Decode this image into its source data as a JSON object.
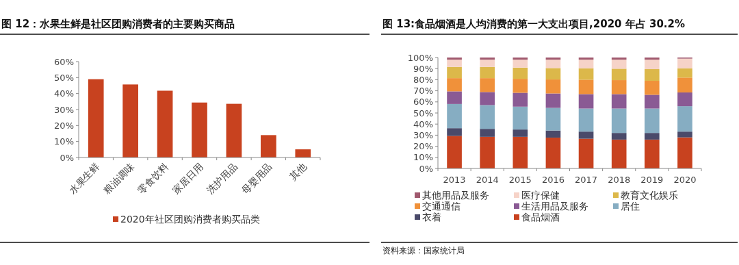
{
  "chart_data": [
    {
      "type": "bar",
      "title": "图 12：水果生鲜是社区团购消费者的主要购买商品",
      "categories": [
        "水果生鲜",
        "粮油调味",
        "零食饮料",
        "家居日用",
        "洗护用品",
        "母婴用品",
        "其他"
      ],
      "series": [
        {
          "name": "2020年社区团购消费者购买品类",
          "color": "#c8421f",
          "values": [
            49.0,
            45.7,
            41.8,
            34.4,
            33.6,
            14.0,
            5.1
          ]
        }
      ],
      "ylim": [
        0,
        60
      ],
      "yticks": [
        {
          "value": 0,
          "label": "0%"
        },
        {
          "value": 10,
          "label": "10%"
        },
        {
          "value": 20,
          "label": "20%"
        },
        {
          "value": 30,
          "label": "30%"
        },
        {
          "value": 40,
          "label": "40%"
        },
        {
          "value": 50,
          "label": "50%"
        },
        {
          "value": 60,
          "label": "60%"
        }
      ],
      "legend": "bottom"
    },
    {
      "type": "bar",
      "title": "图 13:食品烟酒是人均消费的第一大支出项目,2020 年占 30.2%",
      "stacked": true,
      "categories": [
        "2013",
        "2014",
        "2015",
        "2016",
        "2017",
        "2018",
        "2019",
        "2020"
      ],
      "series": [
        {
          "name": "食品烟酒",
          "color": "#c8421f",
          "values": [
            29.3,
            28.5,
            28.5,
            27.8,
            26.8,
            26.0,
            26.0,
            28.0
          ]
        },
        {
          "name": "衣着",
          "color": "#4a4a6a",
          "values": [
            7.0,
            7.2,
            6.6,
            6.4,
            6.4,
            6.0,
            6.0,
            5.2
          ]
        },
        {
          "name": "居住",
          "color": "#86adc2",
          "values": [
            21.8,
            21.4,
            20.6,
            20.4,
            20.8,
            22.0,
            22.0,
            22.9
          ]
        },
        {
          "name": "生活用品及服务",
          "color": "#8a5a94",
          "values": [
            11.4,
            11.8,
            12.5,
            13.0,
            13.0,
            13.0,
            12.4,
            12.4
          ]
        },
        {
          "name": "交通通信",
          "color": "#f0913a",
          "values": [
            11.9,
            12.5,
            12.6,
            12.6,
            13.0,
            12.6,
            12.6,
            13.4
          ]
        },
        {
          "name": "教育文化娱乐",
          "color": "#dcb84a",
          "values": [
            10.1,
            10.1,
            10.1,
            10.3,
            10.3,
            10.3,
            10.5,
            8.4
          ]
        },
        {
          "name": "医疗保健",
          "color": "#f6d3c8",
          "values": [
            6.6,
            6.6,
            7.2,
            7.6,
            7.8,
            8.2,
            8.6,
            8.7
          ]
        },
        {
          "name": "其他用品及服务",
          "color": "#a0596e",
          "values": [
            1.9,
            1.9,
            1.9,
            1.9,
            1.9,
            1.9,
            1.9,
            1.0
          ]
        }
      ],
      "ylim": [
        0,
        100
      ],
      "yticks": [
        {
          "value": 0,
          "label": "0%"
        },
        {
          "value": 10,
          "label": "10%"
        },
        {
          "value": 20,
          "label": "20%"
        },
        {
          "value": 30,
          "label": "30%"
        },
        {
          "value": 40,
          "label": "40%"
        },
        {
          "value": 50,
          "label": "50%"
        },
        {
          "value": 60,
          "label": "60%"
        },
        {
          "value": 70,
          "label": "70%"
        },
        {
          "value": 80,
          "label": "80%"
        },
        {
          "value": 90,
          "label": "90%"
        },
        {
          "value": 100,
          "label": "100%"
        }
      ],
      "legend": "bottom",
      "annotations": [
        "资料来源：国家统计局"
      ]
    }
  ]
}
